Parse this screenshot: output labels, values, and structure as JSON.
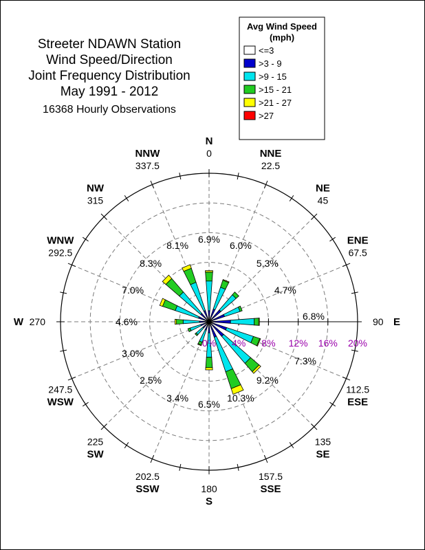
{
  "chart_data": {
    "type": "wind-rose",
    "title_lines": [
      "Streeter NDAWN Station",
      "Wind Speed/Direction",
      "Joint Frequency Distribution",
      "May 1991 - 2012"
    ],
    "subtitle": "16368 Hourly Observations",
    "legend": {
      "title_line1": "Avg Wind Speed",
      "title_line2": "(mph)",
      "placement": "top-right",
      "items": [
        {
          "label": "<=3",
          "color": "#ffffff"
        },
        {
          "label": ">3 - 9",
          "color": "#0000cc"
        },
        {
          "label": ">9 - 15",
          "color": "#00e5ee"
        },
        {
          "label": ">15 - 21",
          "color": "#22cc22"
        },
        {
          "label": ">21 - 27",
          "color": "#ffff00"
        },
        {
          "label": ">27",
          "color": "#ff0000"
        }
      ]
    },
    "radial_axis": {
      "max": 20,
      "ticks": [
        "0%",
        "4%",
        "8%",
        "12%",
        "16%",
        "20%"
      ],
      "label_color": "#9900aa",
      "along_direction_deg": 112.5
    },
    "directions": [
      {
        "name": "N",
        "angle": 0,
        "angle_label": "0",
        "pct_label": "6.9%",
        "segments": [
          0.3,
          1.2,
          4.0,
          1.2,
          0.2,
          0.0
        ]
      },
      {
        "name": "NNE",
        "angle": 22.5,
        "angle_label": "22.5",
        "pct_label": "6.0%",
        "segments": [
          0.3,
          1.5,
          3.1,
          1.0,
          0.1,
          0.0
        ]
      },
      {
        "name": "NE",
        "angle": 45,
        "angle_label": "45",
        "pct_label": "5.3%",
        "segments": [
          0.3,
          1.8,
          2.7,
          0.5,
          0.0,
          0.0
        ]
      },
      {
        "name": "ENE",
        "angle": 67.5,
        "angle_label": "67.5",
        "pct_label": "4.7%",
        "segments": [
          0.3,
          1.9,
          2.2,
          0.3,
          0.0,
          0.0
        ]
      },
      {
        "name": "E",
        "angle": 90,
        "angle_label": "90",
        "pct_label": "6.8%",
        "segments": [
          0.3,
          2.6,
          3.2,
          0.6,
          0.1,
          0.0
        ]
      },
      {
        "name": "ESE",
        "angle": 112.5,
        "angle_label": "112.5",
        "pct_label": "7.3%",
        "segments": [
          0.3,
          2.2,
          3.8,
          0.9,
          0.1,
          0.0
        ]
      },
      {
        "name": "SE",
        "angle": 135,
        "angle_label": "135",
        "pct_label": "9.2%",
        "segments": [
          0.3,
          2.3,
          4.8,
          1.5,
          0.3,
          0.0
        ]
      },
      {
        "name": "SSE",
        "angle": 157.5,
        "angle_label": "157.5",
        "pct_label": "10.3%",
        "segments": [
          0.3,
          1.9,
          4.9,
          2.4,
          0.8,
          0.0
        ]
      },
      {
        "name": "S",
        "angle": 180,
        "angle_label": "180",
        "pct_label": "6.5%",
        "segments": [
          0.3,
          1.2,
          3.3,
          1.4,
          0.3,
          0.0
        ]
      },
      {
        "name": "SSW",
        "angle": 202.5,
        "angle_label": "202.5",
        "pct_label": "3.4%",
        "segments": [
          0.3,
          0.9,
          1.7,
          0.4,
          0.1,
          0.0
        ]
      },
      {
        "name": "SW",
        "angle": 225,
        "angle_label": "225",
        "pct_label": "2.5%",
        "segments": [
          0.3,
          0.8,
          1.2,
          0.2,
          0.0,
          0.0
        ]
      },
      {
        "name": "WSW",
        "angle": 247.5,
        "angle_label": "247.5",
        "pct_label": "3.0%",
        "segments": [
          0.3,
          0.9,
          1.5,
          0.3,
          0.0,
          0.0
        ]
      },
      {
        "name": "W",
        "angle": 270,
        "angle_label": "270",
        "pct_label": "4.6%",
        "segments": [
          0.3,
          1.0,
          2.2,
          0.9,
          0.2,
          0.0
        ]
      },
      {
        "name": "WNW",
        "angle": 292.5,
        "angle_label": "292.5",
        "pct_label": "7.0%",
        "segments": [
          0.3,
          1.2,
          3.3,
          1.8,
          0.4,
          0.0
        ]
      },
      {
        "name": "NW",
        "angle": 315,
        "angle_label": "315",
        "pct_label": "8.3%",
        "segments": [
          0.3,
          1.2,
          3.8,
          2.4,
          0.6,
          0.0
        ]
      },
      {
        "name": "NNW",
        "angle": 337.5,
        "angle_label": "337.5",
        "pct_label": "8.1%",
        "segments": [
          0.3,
          1.3,
          4.0,
          2.0,
          0.5,
          0.0
        ]
      }
    ]
  }
}
